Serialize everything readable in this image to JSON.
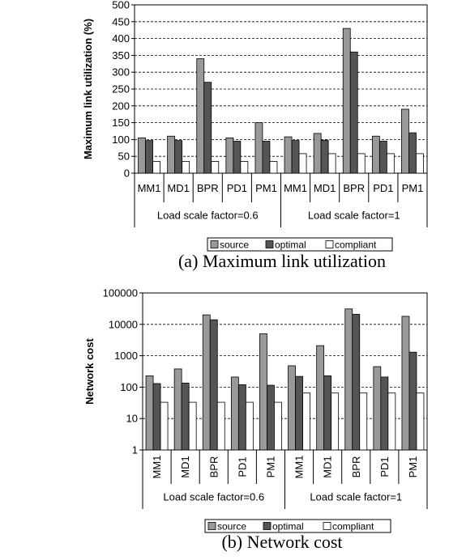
{
  "chart_data": [
    {
      "type": "bar",
      "scale": "linear",
      "ylim": [
        0,
        500
      ],
      "yticks": [
        0,
        50,
        100,
        150,
        200,
        250,
        300,
        350,
        400,
        450,
        500
      ],
      "ylabel": "Maximum link utilization (%)",
      "categories": [
        "MM1",
        "MD1",
        "BPR",
        "PD1",
        "PM1",
        "MM1",
        "MD1",
        "BPR",
        "PD1",
        "PM1"
      ],
      "groups": [
        "Load scale factor=0.6",
        "Load scale factor=1"
      ],
      "series": [
        {
          "name": "source",
          "values": [
            105,
            110,
            340,
            105,
            150,
            108,
            118,
            430,
            110,
            190
          ]
        },
        {
          "name": "optimal",
          "values": [
            97,
            97,
            270,
            95,
            95,
            97,
            98,
            360,
            95,
            120
          ]
        },
        {
          "name": "compliant",
          "values": [
            35,
            35,
            35,
            35,
            35,
            58,
            58,
            58,
            58,
            58
          ]
        }
      ],
      "legend_position": "bottom",
      "grid": true,
      "caption": "(a) Maximum link utilization"
    },
    {
      "type": "bar",
      "scale": "log",
      "ylim": [
        1,
        100000
      ],
      "yticks": [
        1,
        10,
        100,
        1000,
        10000,
        100000
      ],
      "ylabel": "Network cost",
      "categories": [
        "MM1",
        "MD1",
        "BPR",
        "PD1",
        "PM1",
        "MM1",
        "MD1",
        "BPR",
        "PD1",
        "PM1"
      ],
      "groups": [
        "Load scale factor=0.6",
        "Load scale factor=1"
      ],
      "series": [
        {
          "name": "source",
          "values": [
            230,
            380,
            20000,
            210,
            5000,
            480,
            2100,
            31000,
            450,
            18000
          ]
        },
        {
          "name": "optimal",
          "values": [
            130,
            135,
            14000,
            120,
            115,
            220,
            230,
            21000,
            210,
            1300
          ]
        },
        {
          "name": "compliant",
          "values": [
            33,
            33,
            33,
            33,
            33,
            65,
            65,
            65,
            65,
            65
          ]
        }
      ],
      "legend_position": "bottom",
      "grid": true,
      "caption": "(b) Network cost"
    }
  ],
  "colors": {
    "source": "#999999",
    "optimal": "#555555",
    "compliant": "#ffffff"
  }
}
